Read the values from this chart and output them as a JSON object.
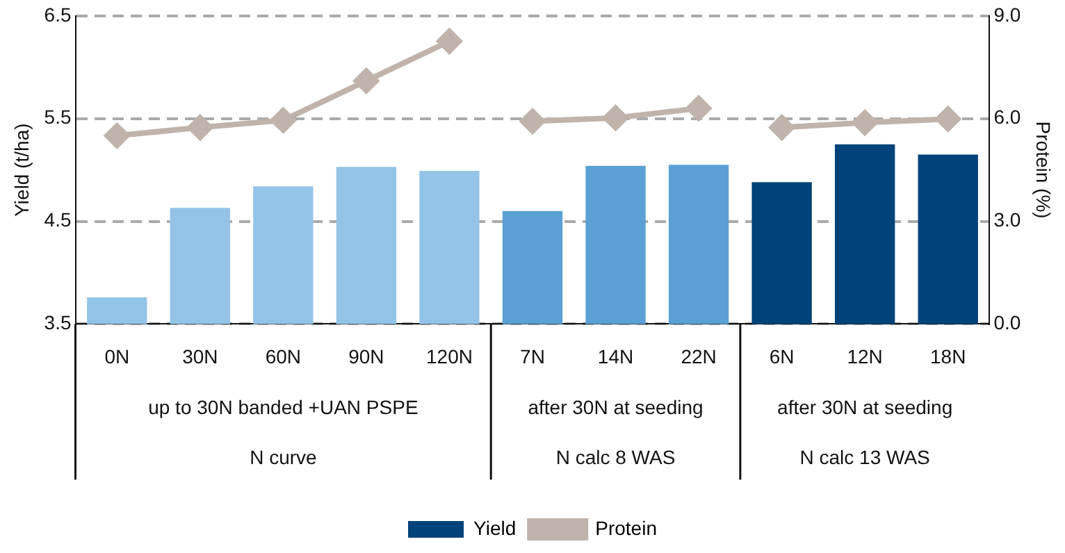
{
  "chart_data": {
    "type": "bar",
    "ylabel": "Yield (t/ha)",
    "y2label": "Protein (%)",
    "categories": [
      "0N",
      "30N",
      "60N",
      "90N",
      "120N",
      "7N",
      "14N",
      "22N",
      "6N",
      "12N",
      "18N"
    ],
    "series": [
      {
        "name": "Yield",
        "color": "#004379",
        "colors": [
          "#93c4e8",
          "#93c4e8",
          "#93c4e8",
          "#93c4e8",
          "#93c4e8",
          "#5aa0d4",
          "#5aa0d4",
          "#5aa0d4",
          "#004379",
          "#004379",
          "#004379"
        ],
        "values": [
          3.76,
          4.63,
          4.84,
          5.03,
          4.99,
          4.6,
          5.04,
          5.05,
          4.88,
          5.25,
          5.15
        ]
      },
      {
        "name": "Protein",
        "type": "line",
        "axis": "y2",
        "color": "#bfb3ac",
        "values": [
          5.5,
          5.74,
          5.95,
          7.1,
          8.26,
          null,
          null,
          null,
          null,
          null,
          null
        ]
      },
      {
        "type": "line",
        "axis": "y2",
        "color": "#bfb3ac",
        "values": [
          null,
          null,
          null,
          null,
          null,
          5.92,
          6.02,
          6.3,
          null,
          null,
          null
        ]
      },
      {
        "type": "line",
        "axis": "y2",
        "color": "#bfb3ac",
        "values": [
          null,
          null,
          null,
          null,
          null,
          null,
          null,
          null,
          5.74,
          5.88,
          5.99
        ]
      }
    ],
    "ylim": [
      3.5,
      6.5
    ],
    "yticks": [
      3.5,
      4.5,
      5.5,
      6.5
    ],
    "y2lim": [
      0,
      9
    ],
    "y2ticks": [
      {
        "value": 0,
        "label": "0.0"
      },
      {
        "value": 3,
        "label": "3.0"
      },
      {
        "value": 6,
        "label": "6.0"
      },
      {
        "value": 9,
        "label": "9.0"
      }
    ],
    "grid": "y",
    "legend": "bottom",
    "marker": "diamond",
    "annotations": [
      "up to 30N banded +UAN PSPE",
      "N curve",
      "after 30N at seeding",
      "N calc 8 WAS",
      "after 30N at seeding",
      "N calc 13 WAS"
    ]
  }
}
